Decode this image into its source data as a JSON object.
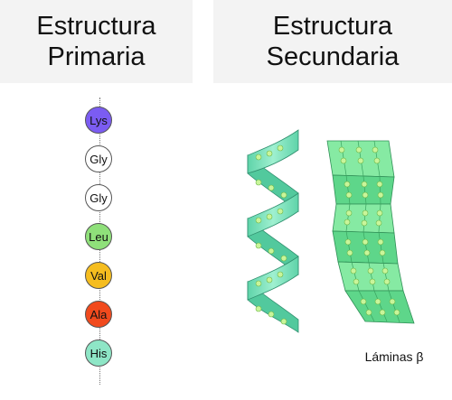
{
  "headers": {
    "primary": [
      "Estructura",
      "Primaria"
    ],
    "secondary": [
      "Estructura",
      "Secundaria"
    ]
  },
  "residues": [
    {
      "label": "Lys",
      "color": "#7b5cf2"
    },
    {
      "label": "Gly",
      "color": "#ffffff"
    },
    {
      "label": "Gly",
      "color": "#ffffff"
    },
    {
      "label": "Leu",
      "color": "#8fe07a"
    },
    {
      "label": "Val",
      "color": "#f5bd1f"
    },
    {
      "label": "Ala",
      "color": "#f14a1d"
    },
    {
      "label": "His",
      "color": "#8ee6c6"
    }
  ],
  "structures": {
    "beta_sheet_label": "Láminas β"
  },
  "colors": {
    "header_bg": "#f3f3f3",
    "helix_fill": "#7fe3bd",
    "sheet_fill": "#86eaa3",
    "bead_fill": "#bff08a"
  }
}
